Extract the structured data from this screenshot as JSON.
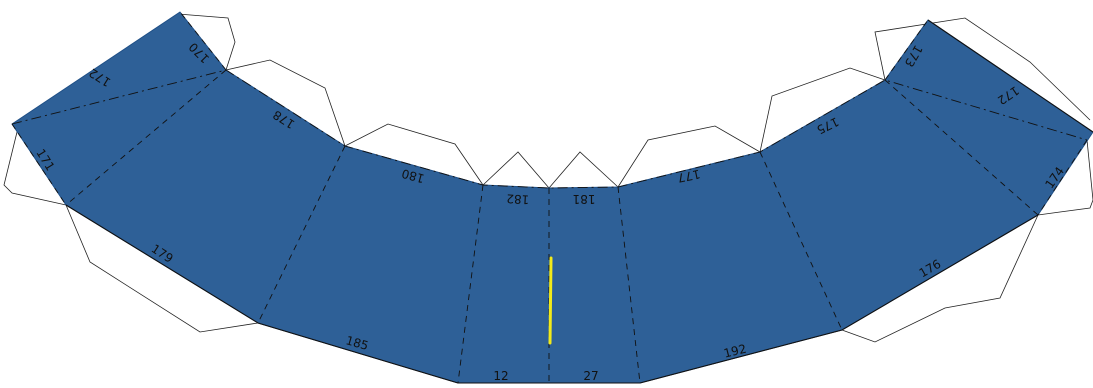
{
  "colors": {
    "panel_fill": "#2e6097",
    "panel_edge": "#1f4f86",
    "marker": "#f2ea1a",
    "line": "#111111",
    "background": "#ffffff"
  },
  "labels": {
    "l170": "170",
    "l172a": "172",
    "l171": "171",
    "l178": "178",
    "l179": "179",
    "l180": "180",
    "l182": "182",
    "l181": "181",
    "l177": "177",
    "l185": "185",
    "l12": "12",
    "l27": "27",
    "l192": "192",
    "l175": "175",
    "l176": "176",
    "l173": "173",
    "l172b": "172",
    "l174": "174"
  }
}
